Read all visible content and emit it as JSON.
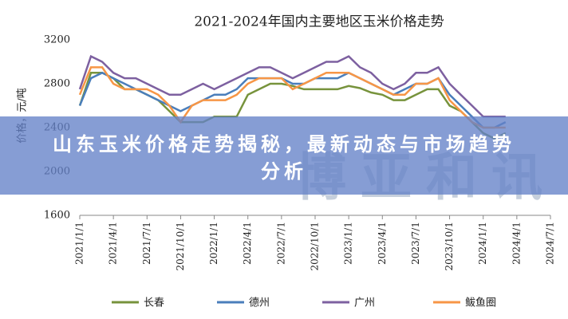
{
  "chart_data": {
    "type": "line",
    "title": "2021-2024年国内主要地区玉米价格走势",
    "y_label": "价格，元/吨",
    "watermark": "博亚和讯",
    "ylim": [
      1600,
      3200
    ],
    "yticks": [
      1600,
      2000,
      2400,
      2800,
      3200
    ],
    "xlim": [
      "2021/1/1",
      "2024/7/1"
    ],
    "xticks": [
      "2021/1/1",
      "2021/4/1",
      "2021/7/1",
      "2021/10/1",
      "2022/1/1",
      "2022/4/1",
      "2022/7/1",
      "2022/10/1",
      "2023/1/1",
      "2023/4/1",
      "2023/7/1",
      "2023/10/1",
      "2024/1/1",
      "2024/4/1",
      "2024/7/1"
    ],
    "x": [
      "2021/1/1",
      "2021/2/1",
      "2021/3/1",
      "2021/4/1",
      "2021/5/1",
      "2021/6/1",
      "2021/7/1",
      "2021/8/1",
      "2021/9/1",
      "2021/10/1",
      "2021/11/1",
      "2021/12/1",
      "2022/1/1",
      "2022/2/1",
      "2022/3/1",
      "2022/4/1",
      "2022/5/1",
      "2022/6/1",
      "2022/7/1",
      "2022/8/1",
      "2022/9/1",
      "2022/10/1",
      "2022/11/1",
      "2022/12/1",
      "2023/1/1",
      "2023/2/1",
      "2023/3/1",
      "2023/4/1",
      "2023/5/1",
      "2023/6/1",
      "2023/7/1",
      "2023/8/1",
      "2023/9/1",
      "2023/10/1",
      "2023/11/1",
      "2023/12/1",
      "2024/1/1",
      "2024/2/1",
      "2024/3/1"
    ],
    "series": [
      {
        "name": "长春",
        "color": "#77933c",
        "values": [
          2600,
          2900,
          2900,
          2850,
          2750,
          2750,
          2700,
          2650,
          2550,
          2450,
          2450,
          2450,
          2500,
          2500,
          2500,
          2700,
          2750,
          2800,
          2800,
          2780,
          2750,
          2750,
          2750,
          2750,
          2780,
          2760,
          2720,
          2700,
          2650,
          2650,
          2700,
          2750,
          2750,
          2600,
          2550,
          2450,
          2350,
          2300,
          2350
        ]
      },
      {
        "name": "德州",
        "color": "#4a7ebb",
        "values": [
          2600,
          2850,
          2900,
          2850,
          2800,
          2750,
          2700,
          2650,
          2600,
          2550,
          2600,
          2650,
          2700,
          2700,
          2750,
          2850,
          2850,
          2850,
          2850,
          2800,
          2800,
          2850,
          2850,
          2850,
          2900,
          2850,
          2800,
          2750,
          2700,
          2750,
          2800,
          2800,
          2850,
          2700,
          2600,
          2500,
          2400,
          2400,
          2450
        ]
      },
      {
        "name": "广州",
        "color": "#7d60a0",
        "values": [
          2750,
          3050,
          3000,
          2900,
          2850,
          2850,
          2800,
          2750,
          2700,
          2700,
          2750,
          2800,
          2750,
          2800,
          2850,
          2900,
          2950,
          2950,
          2900,
          2850,
          2900,
          2950,
          3000,
          3000,
          3050,
          2950,
          2900,
          2800,
          2750,
          2800,
          2900,
          2900,
          2950,
          2800,
          2700,
          2600,
          2500,
          2500,
          2500
        ]
      },
      {
        "name": "鲅鱼圈",
        "color": "#f79646",
        "values": [
          2700,
          2950,
          2950,
          2800,
          2750,
          2750,
          2750,
          2700,
          2600,
          2450,
          2600,
          2650,
          2650,
          2650,
          2700,
          2800,
          2850,
          2850,
          2850,
          2750,
          2800,
          2850,
          2900,
          2900,
          2900,
          2850,
          2800,
          2750,
          2700,
          2700,
          2800,
          2800,
          2850,
          2650,
          2550,
          2450,
          2400,
          2400,
          2400
        ]
      }
    ]
  },
  "banner": {
    "title": "山东玉米价格走势揭秘，最新动态与市场趋势分析"
  }
}
